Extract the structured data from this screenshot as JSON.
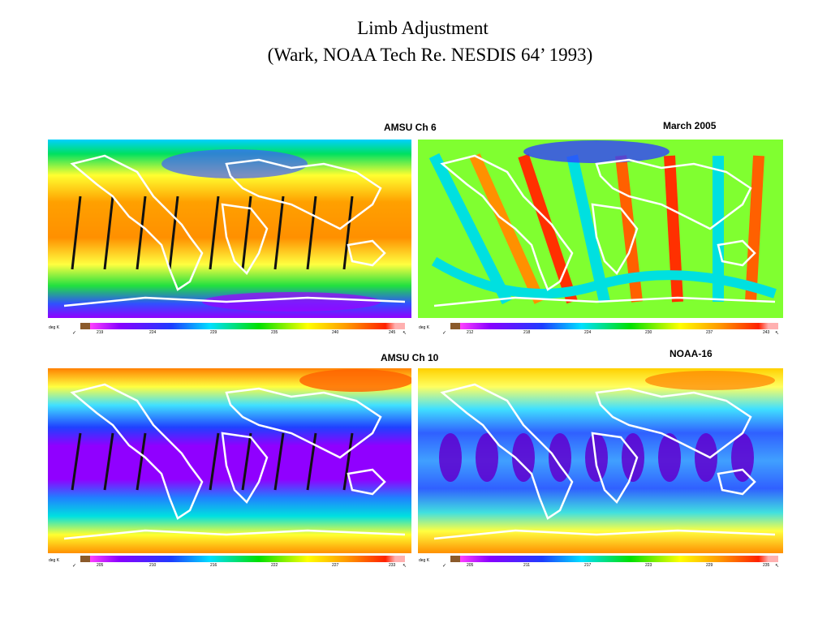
{
  "slide": {
    "title_line1": "Limb Adjustment",
    "title_line2": "(Wark, NOAA Tech Re. NESDIS 64’ 1993)"
  },
  "labels": {
    "ch6": "AMSU Ch 6",
    "date": "March  2005",
    "ch10": "AMSU Ch 10",
    "satellite": "NOAA-16"
  },
  "colorbars": [
    {
      "unit": "deg K",
      "check": "✓",
      "ticks": [
        "219",
        "224",
        "229",
        "235",
        "240",
        "245"
      ],
      "end": "↖"
    },
    {
      "unit": "deg K",
      "check": "✓",
      "ticks": [
        "212",
        "218",
        "224",
        "230",
        "237",
        "243"
      ],
      "end": "↖"
    },
    {
      "unit": "deg K",
      "check": "✓",
      "ticks": [
        "205",
        "210",
        "216",
        "222",
        "227",
        "233"
      ],
      "end": "↖"
    },
    {
      "unit": "deg K",
      "check": "✓",
      "ticks": [
        "205",
        "211",
        "217",
        "223",
        "229",
        "235"
      ],
      "end": "↖"
    }
  ],
  "colors": {
    "brown": "#8b5a2b",
    "purple": "#8a00ff",
    "blue": "#1e3cff",
    "cyan": "#00e0ff",
    "green": "#00e000",
    "yellow": "#ffff00",
    "orange": "#ff9a00",
    "red": "#ff2000",
    "pink": "#ffb0b0"
  }
}
